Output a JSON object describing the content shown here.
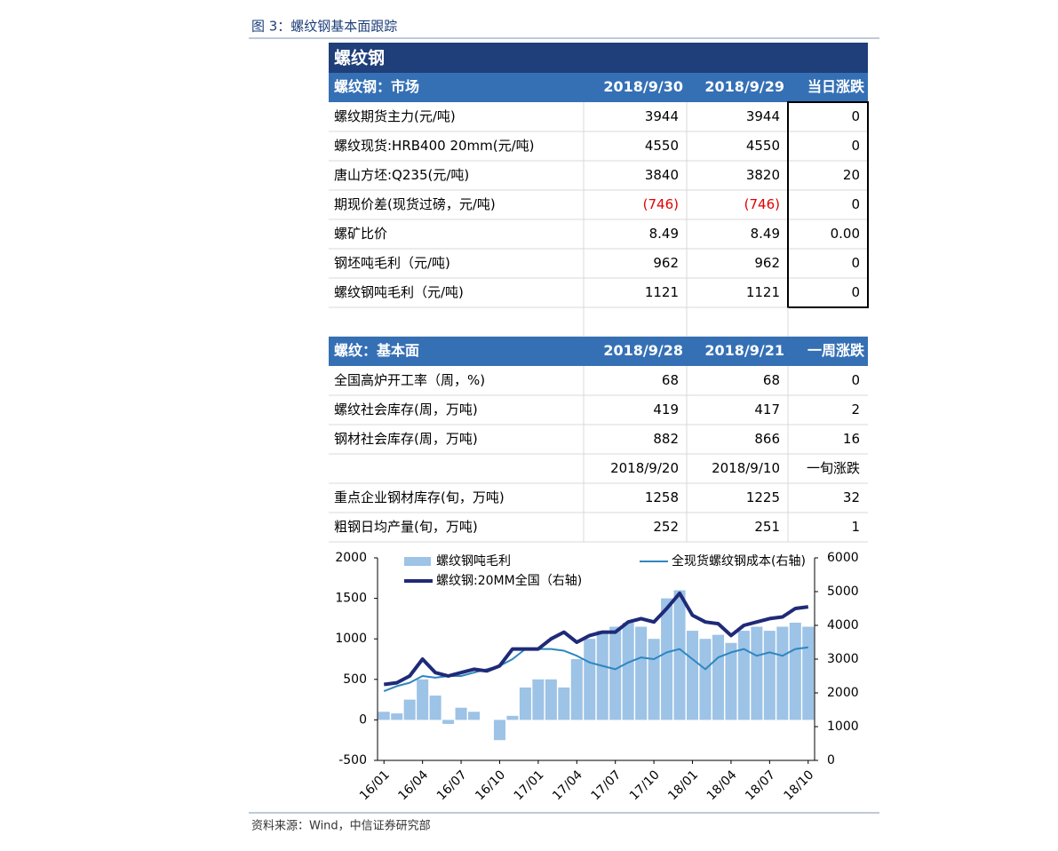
{
  "header": {
    "caption": "图 3：螺纹钢基本面跟踪"
  },
  "table": {
    "title": "螺纹钢",
    "market": {
      "header": [
        "螺纹钢：市场",
        "2018/9/30",
        "2018/9/29",
        "当日涨跌"
      ],
      "rows": [
        [
          "螺纹期货主力(元/吨)",
          "3944",
          "3944",
          "0"
        ],
        [
          "螺纹现货:HRB400 20mm(元/吨)",
          "4550",
          "4550",
          "0"
        ],
        [
          "唐山方坯:Q235(元/吨)",
          "3840",
          "3820",
          "20"
        ],
        [
          "期现价差(现货过磅，元/吨)",
          "(746)",
          "(746)",
          "0"
        ],
        [
          "螺矿比价",
          "8.49",
          "8.49",
          "0.00"
        ],
        [
          "钢坯吨毛利（元/吨)",
          "962",
          "962",
          "0"
        ],
        [
          "螺纹钢吨毛利（元/吨)",
          "1121",
          "1121",
          "0"
        ]
      ]
    },
    "fundamentals": {
      "header": [
        "螺纹：基本面",
        "2018/9/28",
        "2018/9/21",
        "一周涨跌"
      ],
      "weekly_rows": [
        [
          "全国高炉开工率（周，%)",
          "68",
          "68",
          "0"
        ],
        [
          "螺纹社会库存(周，万吨)",
          "419",
          "417",
          "2"
        ],
        [
          "钢材社会库存(周，万吨)",
          "882",
          "866",
          "16"
        ]
      ],
      "ten_day_header": [
        "2018/9/20",
        "2018/9/10",
        "一旬涨跌"
      ],
      "ten_day_rows": [
        [
          "重点企业钢材库存(旬，万吨)",
          "1258",
          "1225",
          "32"
        ],
        [
          "粗钢日均产量(旬，万吨)",
          "252",
          "251",
          "1"
        ]
      ]
    }
  },
  "chart_data": {
    "type": "bar_line",
    "categories": [
      "16/01",
      null,
      null,
      "16/04",
      null,
      null,
      "16/07",
      null,
      null,
      "16/10",
      null,
      null,
      "17/01",
      null,
      null,
      "17/04",
      null,
      null,
      "17/07",
      null,
      null,
      "17/10",
      null,
      null,
      "18/01",
      null,
      null,
      "18/04",
      null,
      null,
      "18/07",
      null,
      null,
      "18/10"
    ],
    "series": [
      {
        "name": "螺纹钢吨毛利",
        "type": "bar",
        "color": "#9dc3e6",
        "values": [
          100,
          80,
          250,
          500,
          300,
          -50,
          150,
          100,
          0,
          -250,
          50,
          400,
          500,
          500,
          400,
          750,
          1000,
          1100,
          1150,
          1200,
          1150,
          1000,
          1500,
          1600,
          1100,
          1000,
          1050,
          950,
          1100,
          1150,
          1100,
          1150,
          1200,
          1150
        ]
      },
      {
        "name": "全现货螺纹钢成本(右轴)",
        "type": "line",
        "axis": "y2",
        "color": "#2e86c1",
        "values": [
          2050,
          2200,
          2300,
          2500,
          2450,
          2500,
          2500,
          2600,
          2700,
          2800,
          3000,
          3300,
          3300,
          3300,
          3250,
          3100,
          2900,
          2800,
          2700,
          2900,
          3050,
          3000,
          3200,
          3300,
          3000,
          2700,
          3050,
          3200,
          3300,
          3100,
          3200,
          3100,
          3300,
          3350
        ]
      },
      {
        "name": "螺纹钢:20MM全国（右轴)",
        "type": "line",
        "axis": "y2",
        "color": "#1f2a78",
        "values": [
          2250,
          2300,
          2500,
          3000,
          2600,
          2500,
          2600,
          2700,
          2650,
          2800,
          3300,
          3300,
          3300,
          3600,
          3800,
          3500,
          3700,
          3800,
          3800,
          4100,
          4200,
          4100,
          4500,
          4950,
          4300,
          4100,
          4050,
          3700,
          4000,
          4100,
          4200,
          4250,
          4500,
          4550
        ]
      }
    ],
    "ylim": [
      -500,
      2000
    ],
    "yticks": [
      -500,
      0,
      500,
      1000,
      1500,
      2000
    ],
    "y2lim": [
      0,
      6000
    ],
    "y2ticks": [
      0,
      1000,
      2000,
      3000,
      4000,
      5000,
      6000
    ]
  },
  "footer": {
    "source": "资料来源：Wind，中信证券研究部"
  }
}
